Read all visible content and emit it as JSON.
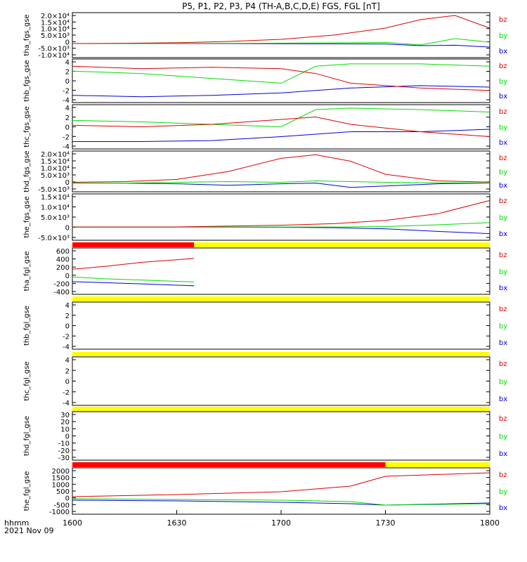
{
  "title": "P5, P1, P2, P3, P4 (TH-A,B,C,D,E) FGS, FGL [nT]",
  "colors": {
    "bx": "#0000d8",
    "by": "#00dd00",
    "bz": "#dd0000",
    "bar_red": "#ff0000",
    "bar_yellow": "#ffff00",
    "bar_black": "#000000"
  },
  "chart_data": {
    "type": "line",
    "x_ticks": [
      "1600",
      "1630",
      "1700",
      "1730",
      "1800"
    ],
    "xlabel": "hhmm",
    "date_label": "2021 Nov 09",
    "panels": [
      {
        "ylabel": "tha_fgs_gse",
        "ylim": [
          -10000,
          22000
        ],
        "yticks": [
          "2.0×10⁴",
          "1.5×10⁴",
          "1.0×10⁴",
          "5.0×10³",
          "0",
          "-5.0×10³",
          "-1.0×10⁴"
        ],
        "legend": [
          "bz",
          "by",
          "bx"
        ],
        "x": [
          "16:00",
          "16:15",
          "16:30",
          "16:45",
          "17:00",
          "17:15",
          "17:30",
          "17:40",
          "17:50",
          "18:00"
        ],
        "series": [
          {
            "name": "bz",
            "values": [
              0,
              200,
              600,
              1500,
              3000,
              6000,
              11000,
              17000,
              20000,
              11000
            ]
          },
          {
            "name": "by",
            "values": [
              0,
              0,
              100,
              200,
              300,
              500,
              800,
              -1000,
              3500,
              1000
            ]
          },
          {
            "name": "bx",
            "values": [
              0,
              0,
              0,
              0,
              -100,
              -200,
              -300,
              -1500,
              -1200,
              -2500
            ]
          }
        ]
      },
      {
        "ylabel": "thb_fgs_gse",
        "ylim": [
          -5,
          4
        ],
        "yticks": [
          "4",
          "2",
          "0",
          "-2",
          "-4"
        ],
        "legend": [
          "bz",
          "by",
          "bx"
        ],
        "x": [
          "16:00",
          "16:20",
          "16:40",
          "17:00",
          "17:10",
          "17:20",
          "17:40",
          "18:00"
        ],
        "series": [
          {
            "name": "bz",
            "values": [
              2.5,
              2.0,
              2.3,
              2.0,
              1.0,
              -1.0,
              -2.0,
              -2.5
            ]
          },
          {
            "name": "by",
            "values": [
              1.5,
              1.0,
              0.0,
              -1.0,
              2.5,
              3.0,
              3.0,
              2.5
            ]
          },
          {
            "name": "bx",
            "values": [
              -3.5,
              -3.8,
              -3.5,
              -3.0,
              -2.5,
              -2.0,
              -1.5,
              -1.8
            ]
          }
        ]
      },
      {
        "ylabel": "thc_fgs_gse",
        "ylim": [
          -5,
          4
        ],
        "yticks": [
          "4",
          "2",
          "0",
          "-2",
          "-4"
        ],
        "legend": [
          "bz",
          "by",
          "bx"
        ],
        "x": [
          "16:00",
          "16:20",
          "16:40",
          "17:00",
          "17:10",
          "17:20",
          "17:40",
          "18:00"
        ],
        "series": [
          {
            "name": "bz",
            "values": [
              -0.2,
              -0.5,
              0.0,
              1.0,
              1.5,
              0.0,
              -1.5,
              -2.5
            ]
          },
          {
            "name": "by",
            "values": [
              0.8,
              0.5,
              0.0,
              -0.5,
              3.0,
              3.3,
              3.0,
              2.5
            ]
          },
          {
            "name": "bx",
            "values": [
              -3.5,
              -3.5,
              -3.3,
              -2.5,
              -2.0,
              -1.5,
              -1.5,
              -1.0
            ]
          }
        ]
      },
      {
        "ylabel": "thd_fgs_gse",
        "ylim": [
          -6000,
          22000
        ],
        "yticks": [
          "2.0×10⁴",
          "1.5×10⁴",
          "1.0×10⁴",
          "5.0×10³",
          "0",
          "-5.0×10³"
        ],
        "legend": [
          "bz",
          "by",
          "bx"
        ],
        "x": [
          "16:00",
          "16:15",
          "16:30",
          "16:45",
          "17:00",
          "17:10",
          "17:20",
          "17:30",
          "17:45",
          "18:00"
        ],
        "series": [
          {
            "name": "bz",
            "values": [
              500,
              1000,
              2500,
              8000,
              17000,
              19500,
              15000,
              6000,
              1500,
              600
            ]
          },
          {
            "name": "by",
            "values": [
              0,
              0,
              500,
              1000,
              500,
              1500,
              1000,
              500,
              200,
              100
            ]
          },
          {
            "name": "bx",
            "values": [
              0,
              -100,
              -500,
              -1500,
              -500,
              0,
              -3000,
              -2000,
              -500,
              0
            ]
          }
        ]
      },
      {
        "ylabel": "the_fgs_gse",
        "ylim": [
          -6000,
          15000
        ],
        "yticks": [
          "1.5×10⁴",
          "1.0×10⁴",
          "5.0×10³",
          "0",
          "-5.0×10³"
        ],
        "legend": [
          "bz",
          "by",
          "bx"
        ],
        "x": [
          "16:00",
          "16:30",
          "17:00",
          "17:15",
          "17:30",
          "17:45",
          "18:00"
        ],
        "series": [
          {
            "name": "bz",
            "values": [
              0,
              0,
              800,
              1500,
              3000,
              6000,
              12000
            ]
          },
          {
            "name": "by",
            "values": [
              0,
              0,
              0,
              0,
              200,
              1000,
              2000
            ]
          },
          {
            "name": "bx",
            "values": [
              0,
              0,
              -100,
              -300,
              -800,
              -2000,
              -3000
            ]
          }
        ]
      },
      {
        "ylabel": "tha_fgl_gse",
        "ylim": [
          -450,
          750
        ],
        "yticks": [
          "600",
          "400",
          "200",
          "0",
          "-200",
          "-400"
        ],
        "legend": [
          "bz",
          "by",
          "bx"
        ],
        "status_bar": [
          [
            "red",
            "16:00",
            "16:35"
          ],
          [
            "yellow",
            "16:35",
            "18:00"
          ]
        ],
        "x": [
          "16:00",
          "16:10",
          "16:20",
          "16:35"
        ],
        "series": [
          {
            "name": "bz",
            "values": [
              200,
              280,
              380,
              480
            ]
          },
          {
            "name": "by",
            "values": [
              0,
              -50,
              -80,
              -130
            ]
          },
          {
            "name": "bx",
            "values": [
              -120,
              -150,
              -180,
              -230
            ]
          }
        ]
      },
      {
        "ylabel": "thb_fgl_gse",
        "ylim": [
          -5,
          5
        ],
        "yticks": [
          "4",
          "2",
          "0",
          "-2",
          "-4"
        ],
        "legend": [
          "bz",
          "by",
          "bx"
        ],
        "status_bar": [
          [
            "yellow",
            "16:00",
            "18:00"
          ]
        ],
        "x": [],
        "series": []
      },
      {
        "ylabel": "thc_fgl_gse",
        "ylim": [
          -5,
          5
        ],
        "yticks": [
          "4",
          "2",
          "0",
          "-2",
          "-4"
        ],
        "legend": [
          "bz",
          "by",
          "bx"
        ],
        "status_bar": [
          [
            "yellow",
            "16:00",
            "18:00"
          ]
        ],
        "x": [],
        "series": []
      },
      {
        "ylabel": "thd_fgl_gse",
        "ylim": [
          -35,
          35
        ],
        "yticks": [
          "30",
          "20",
          "10",
          "0",
          "-10",
          "-20",
          "-30"
        ],
        "legend": [
          "bz",
          "by",
          "bx"
        ],
        "status_bar": [
          [
            "yellow",
            "16:00",
            "18:00"
          ]
        ],
        "x": [],
        "series": []
      },
      {
        "ylabel": "the_fgl_gse",
        "ylim": [
          -1100,
          2200
        ],
        "yticks": [
          "2000",
          "1500",
          "1000",
          "500",
          "0",
          "-500",
          "-1000"
        ],
        "legend": [
          "bz",
          "by",
          "bx"
        ],
        "status_bar": [
          [
            "red",
            "16:00",
            "17:30"
          ],
          [
            "yellow",
            "17:30",
            "18:00"
          ]
        ],
        "x": [
          "16:00",
          "16:30",
          "17:00",
          "17:20",
          "17:30",
          "18:00"
        ],
        "series": [
          {
            "name": "bz",
            "values": [
              150,
              300,
              500,
              900,
              1600,
              1850
            ]
          },
          {
            "name": "by",
            "values": [
              0,
              -50,
              -100,
              -200,
              -450,
              -350
            ]
          },
          {
            "name": "bx",
            "values": [
              -100,
              -150,
              -250,
              -350,
              -450,
              -300
            ]
          }
        ]
      }
    ]
  }
}
